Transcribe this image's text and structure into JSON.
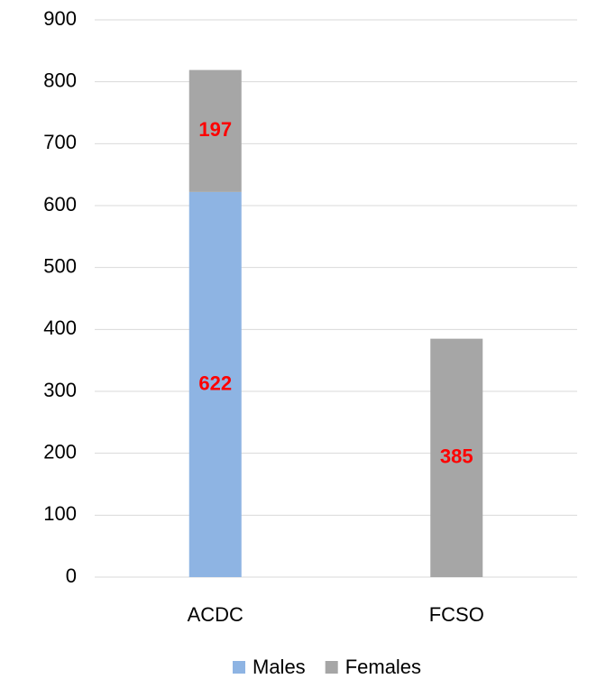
{
  "chart_data": {
    "type": "stacked_bar",
    "categories": [
      "ACDC",
      "FCSO"
    ],
    "series": [
      {
        "name": "Males",
        "color": "#8eb4e3",
        "values": [
          622,
          null
        ]
      },
      {
        "name": "Females",
        "color": "#a6a6a6",
        "values": [
          197,
          385
        ]
      }
    ],
    "ylim": [
      0,
      900
    ],
    "yticks": [
      0,
      100,
      200,
      300,
      400,
      500,
      600,
      700,
      800,
      900
    ],
    "grid": true,
    "legend": "bottom"
  }
}
